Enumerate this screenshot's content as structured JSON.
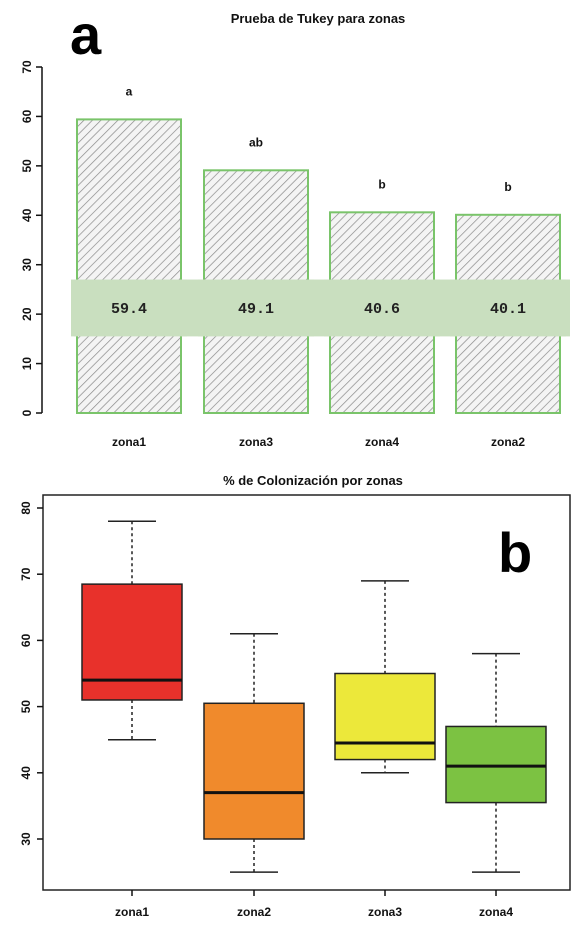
{
  "chart_data": [
    {
      "panel_label": "a",
      "type": "bar",
      "title": "Prueba de Tukey para zonas",
      "xlabel": "",
      "ylabel": "",
      "ylim": [
        0,
        70
      ],
      "yticks": [
        "0",
        "10",
        "20",
        "30",
        "40",
        "50",
        "60",
        "70"
      ],
      "categories": [
        "zona1",
        "zona3",
        "zona4",
        "zona2"
      ],
      "values": [
        59.4,
        49.1,
        40.6,
        40.1
      ],
      "value_labels": [
        "59.4",
        "49.1",
        "40.6",
        "40.1"
      ],
      "group_letters": [
        "a",
        "ab",
        "b",
        "b"
      ],
      "grid": false,
      "colors": {
        "bar_edge": "#7ac46a",
        "hatch": "#8a8a8a",
        "value_band": "#c9dfbf"
      }
    },
    {
      "panel_label": "b",
      "type": "boxplot",
      "title": "% de Colonización por zonas",
      "xlabel": "",
      "ylabel": "",
      "ylim": [
        22,
        80
      ],
      "yticks": [
        "30",
        "40",
        "50",
        "60",
        "70",
        "80"
      ],
      "categories": [
        "zona1",
        "zona2",
        "zona3",
        "zona4"
      ],
      "boxes": [
        {
          "name": "zona1",
          "min": 45,
          "q1": 51,
          "median": 54,
          "q3": 68.5,
          "max": 78,
          "color": "#e8312b"
        },
        {
          "name": "zona2",
          "min": 25,
          "q1": 30,
          "median": 37,
          "q3": 50.5,
          "max": 61,
          "color": "#f08a2c"
        },
        {
          "name": "zona3",
          "min": 40,
          "q1": 42,
          "median": 44.5,
          "q3": 55,
          "max": 69,
          "color": "#ece83a"
        },
        {
          "name": "zona4",
          "min": 25,
          "q1": 35.5,
          "median": 41,
          "q3": 47,
          "max": 58,
          "color": "#7cc242"
        }
      ],
      "grid": false
    }
  ]
}
